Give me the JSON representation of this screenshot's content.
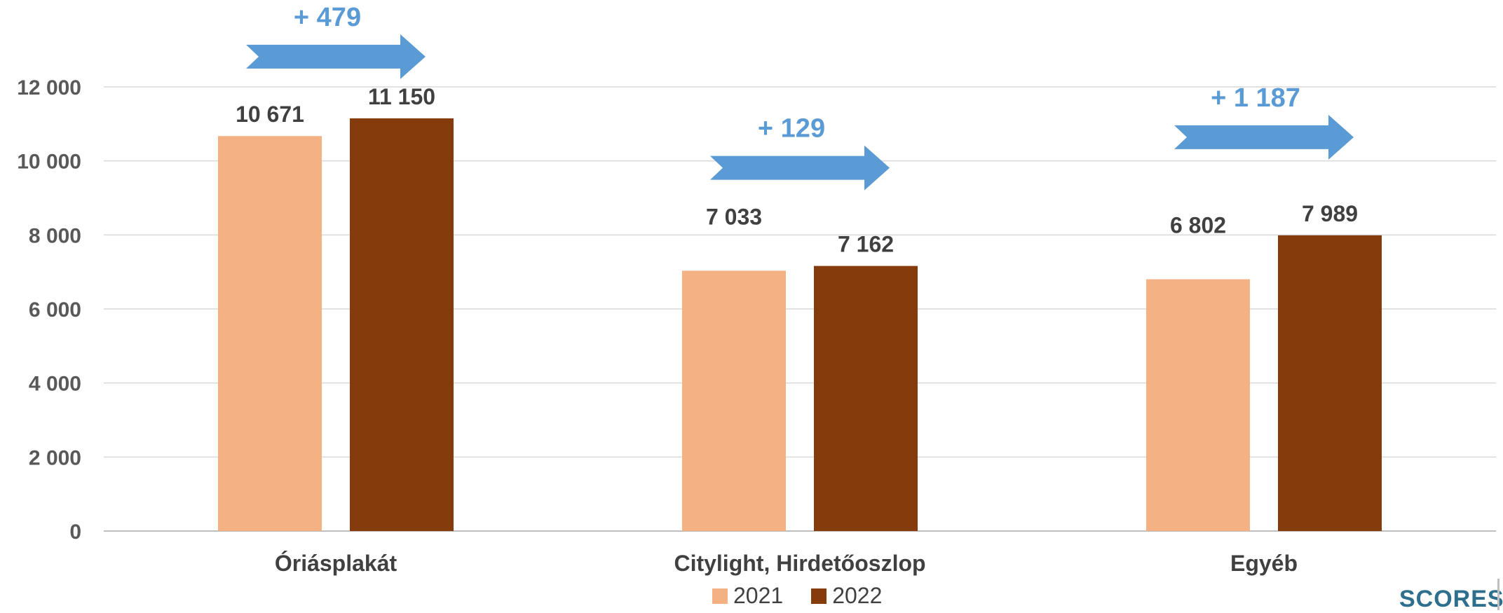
{
  "chart_data": {
    "type": "bar",
    "categories": [
      "Óriásplakát",
      "Citylight, Hirdetőoszlop",
      "Egyéb"
    ],
    "series": [
      {
        "name": "2021",
        "values": [
          10671,
          7033,
          6802
        ],
        "labels": [
          "10 671",
          "7 033",
          "6 802"
        ],
        "color": "#f4b183"
      },
      {
        "name": "2022",
        "values": [
          11150,
          7162,
          7989
        ],
        "labels": [
          "11 150",
          "7 162",
          "7 989"
        ],
        "color": "#843c0c"
      }
    ],
    "differences": [
      "+ 479",
      "+ 129",
      "+ 1 187"
    ],
    "difference_color": "#5b9bd5",
    "ylim": [
      0,
      12000
    ],
    "yticks": [
      0,
      2000,
      4000,
      6000,
      8000,
      10000,
      12000
    ],
    "ytick_labels": [
      "0",
      "2  000",
      "4  000",
      "6  000",
      "8  000",
      "10  000",
      "12  000"
    ],
    "grid": true,
    "legend_position": "bottom"
  },
  "logo": "SCORES"
}
